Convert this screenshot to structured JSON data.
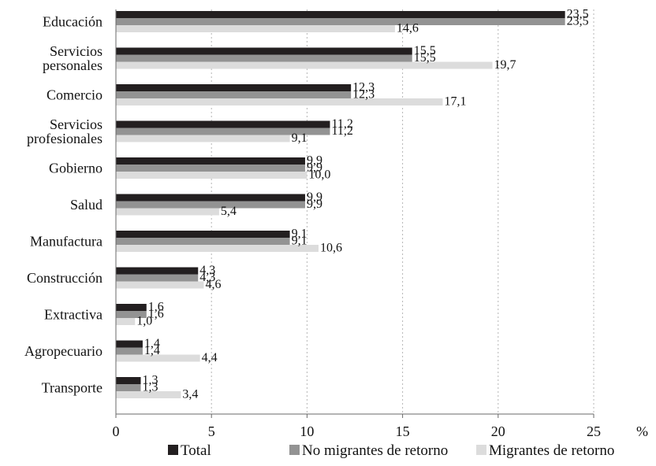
{
  "chart_data": {
    "type": "bar",
    "orientation": "horizontal",
    "categories": [
      [
        "Educación"
      ],
      [
        "Servicios",
        "personales"
      ],
      [
        "Comercio"
      ],
      [
        "Servicios",
        "profesionales"
      ],
      [
        "Gobierno"
      ],
      [
        "Salud"
      ],
      [
        "Manufactura"
      ],
      [
        "Construcción"
      ],
      [
        "Extractiva"
      ],
      [
        "Agropecuario"
      ],
      [
        "Transporte"
      ]
    ],
    "series": [
      {
        "name": "Total",
        "color": "#231f20",
        "values": [
          23.5,
          15.5,
          12.3,
          11.2,
          9.9,
          9.9,
          9.1,
          4.3,
          1.6,
          1.4,
          1.3
        ]
      },
      {
        "name": "No migrantes de retorno",
        "color": "#939393",
        "values": [
          23.5,
          15.5,
          12.3,
          11.2,
          9.9,
          9.9,
          9.1,
          4.3,
          1.6,
          1.4,
          1.3
        ]
      },
      {
        "name": "Migrantes de retorno",
        "color": "#dcdcdc",
        "values": [
          14.6,
          19.7,
          17.1,
          9.1,
          10.0,
          5.4,
          10.6,
          4.6,
          1.0,
          4.4,
          3.4
        ]
      }
    ],
    "value_labels": [
      [
        "23,5",
        "15,5",
        "12,3",
        "11,2",
        "9,9",
        "9,9",
        "9,1",
        "4,3",
        "1,6",
        "1,4",
        "1,3"
      ],
      [
        "23,5",
        "15,5",
        "12,3",
        "11,2",
        "9,9",
        "9,9",
        "9,1",
        "4,3",
        "1,6",
        "1,4",
        "1,3"
      ],
      [
        "14,6",
        "19,7",
        "17,1",
        "9,1",
        "10,0",
        "5,4",
        "10,6",
        "4,6",
        "1,0",
        "4,4",
        "3,4"
      ]
    ],
    "xlim": [
      0,
      25
    ],
    "xticks": [
      0,
      5,
      10,
      15,
      20,
      25
    ],
    "xtick_labels": [
      "0",
      "5",
      "10",
      "15",
      "20",
      "25"
    ],
    "xunit": "%",
    "grid": "vertical dotted",
    "legend_position": "bottom"
  }
}
